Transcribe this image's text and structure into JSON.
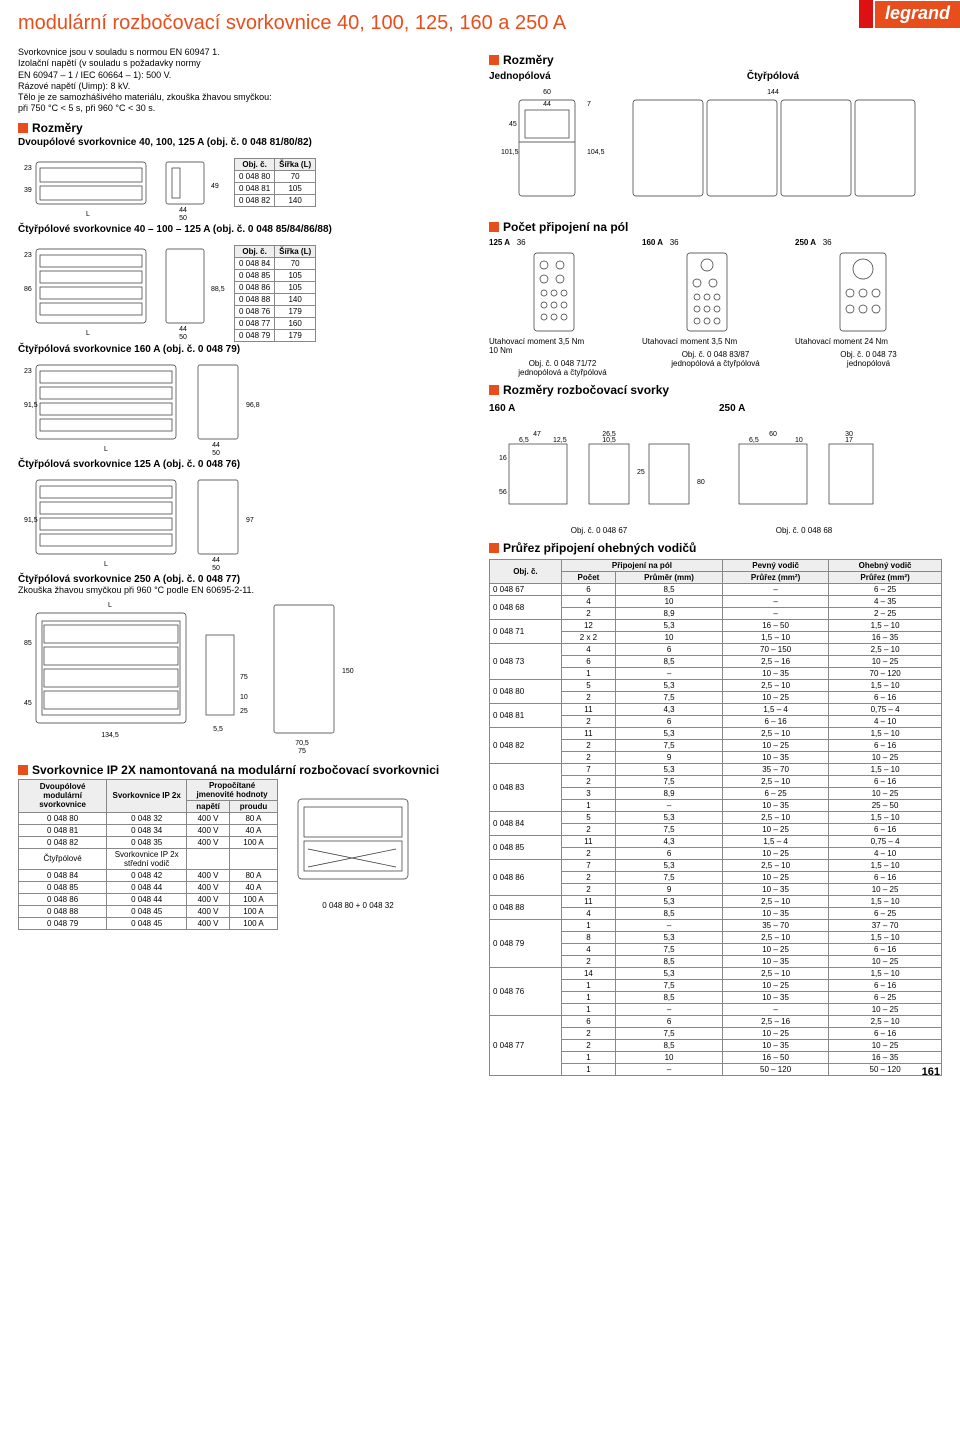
{
  "brand": "legrand",
  "page_number": "161",
  "title": "modulární rozbočovací svorkovnice 40, 100, 125, 160 a 250 A",
  "intro_lines": [
    "Svorkovnice jsou v souladu s normou EN 60947 1.",
    "Izolační napětí (v souladu s požadavky normy",
    "EN 60947 – 1 / IEC 60664 – 1): 500 V.",
    "Rázové napětí (Uimp): 8 kV.",
    "Tělo je ze samozhášivého materiálu, zkouška žhavou smyčkou:",
    "při 750 °C < 5 s, při 960 °C < 30 s."
  ],
  "rozmery_heading": "Rozměry",
  "dvoupolove_sub": "Dvoupólové svorkovnice 40, 100, 125 A (obj. č. 0 048 81/80/82)",
  "ctyrpolove_sub": "Čtyřpólové svorkovnice 40 – 100 – 125 A (obj. č. 0 048 85/84/86/88)",
  "ctyr160_sub": "Čtyřpólová svorkovnice 160 A (obj. č. 0 048 79)",
  "ctyr125_sub": "Čtyřpólová svorkovnice 125 A (obj. č. 0 048 76)",
  "ctyr250_sub": "Čtyřpólová svorkovnice 250 A (obj. č. 0 048 77)",
  "ctyr250_note": "Zkouška žhavou smyčkou při 960 °C podle EN 60695-2-11.",
  "dim_tbl1": {
    "header": [
      "Obj. č.",
      "Šířka (L)"
    ],
    "rows": [
      [
        "0 048 80",
        "70"
      ],
      [
        "0 048 81",
        "105"
      ],
      [
        "0 048 82",
        "140"
      ]
    ]
  },
  "dim_tbl2": {
    "header": [
      "Obj. č.",
      "Šířka (L)"
    ],
    "rows": [
      [
        "0 048 84",
        "70"
      ],
      [
        "0 048 85",
        "105"
      ],
      [
        "0 048 86",
        "105"
      ],
      [
        "0 048 88",
        "140"
      ],
      [
        "0 048 76",
        "179"
      ],
      [
        "0 048 77",
        "160"
      ],
      [
        "0 048 79",
        "179"
      ]
    ]
  },
  "left_dims": {
    "d1": [
      "23",
      "39",
      "L",
      "49",
      "44",
      "50"
    ],
    "d2": [
      "23",
      "86",
      "L",
      "88,5",
      "44",
      "50"
    ],
    "d3": [
      "23",
      "91,5",
      "L",
      "96,8",
      "44",
      "50"
    ],
    "d4": [
      "91,5",
      "97",
      "44",
      "50",
      "L"
    ],
    "d5": [
      "45",
      "85",
      "134,5",
      "75",
      "10",
      "25",
      "5,5",
      "150",
      "70,5",
      "75",
      "L"
    ]
  },
  "ip2x_heading": "Svorkovnice IP 2X namontovaná na modulární rozbočovací svorkovnici",
  "ip2x_headers": [
    "Dvoupólové modulární svorkovnice",
    "Svorkovnice IP 2x",
    "Propočítané jmenovité hodnoty"
  ],
  "ip2x_sub": [
    "",
    "",
    "napětí",
    "proudu"
  ],
  "ip2x_rows_dv": [
    [
      "0 048 80",
      "0 048 32",
      "400 V",
      "80 A"
    ],
    [
      "0 048 81",
      "0 048 34",
      "400 V",
      "40 A"
    ],
    [
      "0 048 82",
      "0 048 35",
      "400 V",
      "100 A"
    ]
  ],
  "ip2x_mid": [
    "Čtyřpólové",
    "Svorkovnice IP 2x střední vodič"
  ],
  "ip2x_rows_ct": [
    [
      "0 048 84",
      "0 048 42",
      "400 V",
      "80 A"
    ],
    [
      "0 048 85",
      "0 048 44",
      "400 V",
      "40 A"
    ],
    [
      "0 048 86",
      "0 048 44",
      "400 V",
      "100 A"
    ],
    [
      "0 048 88",
      "0 048 45",
      "400 V",
      "100 A"
    ],
    [
      "0 048 79",
      "0 048 45",
      "400 V",
      "100 A"
    ]
  ],
  "ip2x_caption": "0 048 80 + 0 048 32",
  "right": {
    "rozmery_heading": "Rozměry",
    "jedno": "Jednopólová",
    "ctyr": "Čtyřpólová",
    "jedno_dims": [
      "60",
      "44",
      "7",
      "101,5",
      "45",
      "104,5",
      "144"
    ],
    "pocet_heading": "Počet připojení na pól",
    "pocet_cols": [
      "125 A",
      "160 A",
      "250 A"
    ],
    "pocet_dims": [
      "36",
      "36",
      "36"
    ],
    "pocet_notes": [
      "Utahovací moment 3,5 Nm\n10 Nm",
      "Utahovací moment 3,5 Nm",
      "Utahovací moment 24 Nm"
    ],
    "pocet_caps": [
      "Obj. č. 0 048 71/72\njednopólová a čtyřpólová",
      "Obj. č. 0 048 83/87\njednopólová a čtyřpólová",
      "Obj. č. 0 048 73\njednopólová"
    ],
    "svorky_heading": "Rozměry rozbočovací svorky",
    "svorky_160": "160 A",
    "svorky_250": "250 A",
    "svorky_dims_160": [
      "47",
      "6,5",
      "12,5",
      "26,5",
      "10,5",
      "25",
      "16",
      "56",
      "80"
    ],
    "svorky_dims_250": [
      "60",
      "6,5",
      "10",
      "30",
      "17"
    ],
    "svorky_caps": [
      "Obj. č. 0 048 67",
      "Obj. č. 0 048 68"
    ],
    "prurez_heading": "Průřez připojení ohebných vodičů",
    "prurez_header1": [
      "Obj. č.",
      "Připojení na pól",
      "Pevný vodič",
      "Ohebný vodič"
    ],
    "prurez_header2": [
      "",
      "Počet",
      "Průměr (mm)",
      "Průřez (mm²)",
      "Průřez (mm²)"
    ],
    "prurez_rows": [
      [
        "0 048 67",
        [
          [
            "6",
            "8,5",
            "–",
            "6 – 25"
          ]
        ]
      ],
      [
        "0 048 68",
        [
          [
            "4",
            "10",
            "–",
            "4 – 35"
          ],
          [
            "2",
            "8,9",
            "–",
            "2 – 25"
          ]
        ]
      ],
      [
        "0 048 71",
        [
          [
            "12",
            "5,3",
            "16 – 50",
            "1,5 – 10"
          ],
          [
            "2 x 2",
            "10",
            "1,5 – 10",
            "16 – 35"
          ]
        ]
      ],
      [
        "0 048 73",
        [
          [
            "4",
            "6",
            "70 – 150",
            "2,5 – 10"
          ],
          [
            "6",
            "8,5",
            "2,5 – 16",
            "10 – 25"
          ],
          [
            "1",
            "–",
            "10 – 35",
            "70 – 120"
          ]
        ]
      ],
      [
        "0 048 80",
        [
          [
            "5",
            "5,3",
            "2,5 – 10",
            "1,5 – 10"
          ],
          [
            "2",
            "7,5",
            "10 – 25",
            "6 – 16"
          ]
        ]
      ],
      [
        "0 048 81",
        [
          [
            "11",
            "4,3",
            "1,5 – 4",
            "0,75 – 4"
          ],
          [
            "2",
            "6",
            "6 – 16",
            "4 – 10"
          ]
        ]
      ],
      [
        "0 048 82",
        [
          [
            "11",
            "5,3",
            "2,5 – 10",
            "1,5 – 10"
          ],
          [
            "2",
            "7,5",
            "10 – 25",
            "6 – 16"
          ],
          [
            "2",
            "9",
            "10 – 35",
            "10 – 25"
          ]
        ]
      ],
      [
        "0 048 83",
        [
          [
            "7",
            "5,3",
            "35 – 70",
            "1,5 – 10"
          ],
          [
            "2",
            "7,5",
            "2,5 – 10",
            "6 – 16"
          ],
          [
            "3",
            "8,9",
            "6 – 25",
            "10 – 25"
          ],
          [
            "1",
            "–",
            "10 – 35",
            "25 – 50"
          ]
        ]
      ],
      [
        "0 048 84",
        [
          [
            "5",
            "5,3",
            "2,5 – 10",
            "1,5 – 10"
          ],
          [
            "2",
            "7,5",
            "10 – 25",
            "6 – 16"
          ]
        ]
      ],
      [
        "0 048 85",
        [
          [
            "11",
            "4,3",
            "1,5 – 4",
            "0,75 – 4"
          ],
          [
            "2",
            "6",
            "10 – 25",
            "4 – 10"
          ]
        ]
      ],
      [
        "0 048 86",
        [
          [
            "7",
            "5,3",
            "2,5 – 10",
            "1,5 – 10"
          ],
          [
            "2",
            "7,5",
            "10 – 25",
            "6 – 16"
          ],
          [
            "2",
            "9",
            "10 – 35",
            "10 – 25"
          ]
        ]
      ],
      [
        "0 048 88",
        [
          [
            "11",
            "5,3",
            "2,5 – 10",
            "1,5 – 10"
          ],
          [
            "4",
            "8,5",
            "10 – 35",
            "6 – 25"
          ]
        ]
      ],
      [
        "0 048 79",
        [
          [
            "1",
            "–",
            "35 – 70",
            "37 – 70"
          ],
          [
            "8",
            "5,3",
            "2,5 – 10",
            "1,5 – 10"
          ],
          [
            "4",
            "7,5",
            "10 – 25",
            "6 – 16"
          ],
          [
            "2",
            "8,5",
            "10 – 35",
            "10 – 25"
          ]
        ]
      ],
      [
        "0 048 76",
        [
          [
            "14",
            "5,3",
            "2,5 – 10",
            "1,5 – 10"
          ],
          [
            "1",
            "7,5",
            "10 – 25",
            "6 – 16"
          ],
          [
            "1",
            "8,5",
            "10 – 35",
            "6 – 25"
          ],
          [
            "1",
            "–",
            "–",
            "10 – 25"
          ]
        ]
      ],
      [
        "0 048 77",
        [
          [
            "6",
            "6",
            "2,5 – 16",
            "2,5 – 10"
          ],
          [
            "2",
            "7,5",
            "10 – 25",
            "6 – 16"
          ],
          [
            "2",
            "8,5",
            "10 – 35",
            "10 – 25"
          ],
          [
            "1",
            "10",
            "16 – 50",
            "16 – 35"
          ],
          [
            "1",
            "–",
            "50 – 120",
            "50 – 120"
          ]
        ]
      ]
    ]
  },
  "colors": {
    "orange": "#e84e1b",
    "brand_red": "#d11",
    "grid": "#888",
    "line": "#333"
  }
}
